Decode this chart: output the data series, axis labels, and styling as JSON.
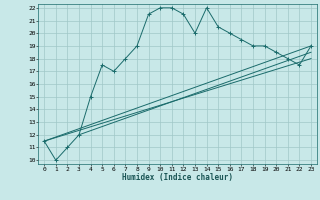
{
  "xlabel": "Humidex (Indice chaleur)",
  "ylabel": "",
  "bg_color": "#c8e8e8",
  "grid_color": "#a0c8c8",
  "line_color": "#1a6b6b",
  "xlim": [
    -0.5,
    23.5
  ],
  "ylim": [
    9.7,
    22.3
  ],
  "yticks": [
    10,
    11,
    12,
    13,
    14,
    15,
    16,
    17,
    18,
    19,
    20,
    21,
    22
  ],
  "xticks": [
    0,
    1,
    2,
    3,
    4,
    5,
    6,
    7,
    8,
    9,
    10,
    11,
    12,
    13,
    14,
    15,
    16,
    17,
    18,
    19,
    20,
    21,
    22,
    23
  ],
  "series": [
    [
      0,
      11.5
    ],
    [
      1,
      10.0
    ],
    [
      2,
      11.0
    ],
    [
      3,
      12.0
    ],
    [
      4,
      15.0
    ],
    [
      5,
      17.5
    ],
    [
      6,
      17.0
    ],
    [
      7,
      18.0
    ],
    [
      8,
      19.0
    ],
    [
      9,
      21.5
    ],
    [
      10,
      22.0
    ],
    [
      11,
      22.0
    ],
    [
      12,
      21.5
    ],
    [
      13,
      20.0
    ],
    [
      14,
      22.0
    ],
    [
      15,
      20.5
    ],
    [
      16,
      20.0
    ],
    [
      17,
      19.5
    ],
    [
      18,
      19.0
    ],
    [
      19,
      19.0
    ],
    [
      20,
      18.5
    ],
    [
      21,
      18.0
    ],
    [
      22,
      17.5
    ],
    [
      23,
      19.0
    ]
  ],
  "line2": [
    [
      0,
      11.5
    ],
    [
      23,
      19.0
    ]
  ],
  "line3": [
    [
      0,
      11.5
    ],
    [
      23,
      18.0
    ]
  ],
  "line4": [
    [
      3,
      12.0
    ],
    [
      23,
      18.5
    ]
  ]
}
